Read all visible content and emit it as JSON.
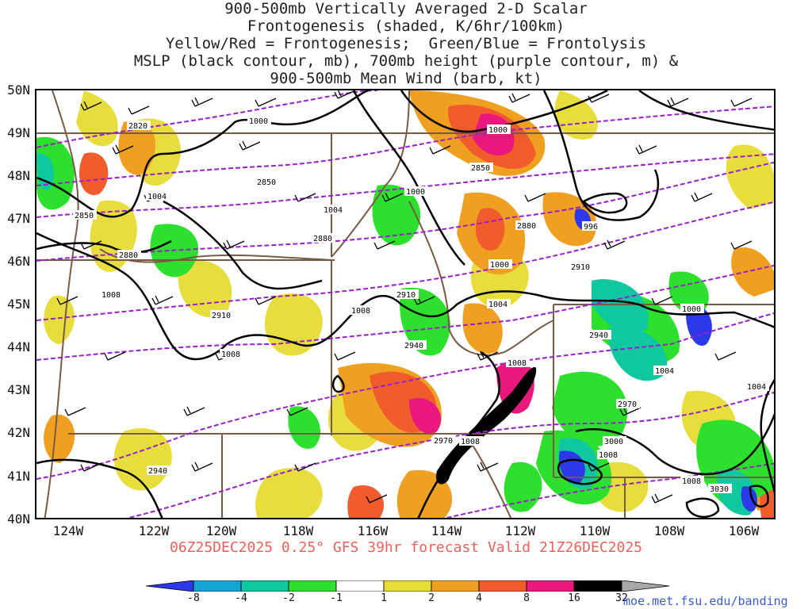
{
  "title_lines": [
    "900-500mb Vertically Averaged 2-D Scalar",
    "Frontogenesis (shaded, K/6hr/100km)",
    "Yellow/Red = Frontogenesis;  Green/Blue = Frontolysis",
    "MSLP (black contour, mb), 700mb height (purple contour, m) &",
    "900-500mb Mean Wind (barb, kt)"
  ],
  "lat_labels": [
    "50N",
    "49N",
    "48N",
    "47N",
    "46N",
    "45N",
    "44N",
    "43N",
    "42N",
    "41N",
    "40N"
  ],
  "lon_labels": [
    "124W",
    "122W",
    "120W",
    "118W",
    "116W",
    "114W",
    "112W",
    "110W",
    "108W",
    "106W"
  ],
  "caption": "06Z25DEC2025 0.25° GFS 39hr forecast Valid 21Z26DEC2025",
  "colorbar": {
    "ticks": [
      "-8",
      "-4",
      "-2",
      "-1",
      "1",
      "2",
      "4",
      "8",
      "16",
      "32"
    ],
    "colors": [
      "#2c39e8",
      "#16a6d6",
      "#10c8a0",
      "#1fd060",
      "#2ee02e",
      "#ffffff",
      "#e6dc34",
      "#f0a020",
      "#f05c2c",
      "#e8187c",
      "#000000",
      "#a8a8a8"
    ]
  },
  "credit": "moe.met.fsu.edu/banding",
  "mslp_labels": [
    "1000",
    "1000",
    "1000",
    "1000",
    "1004",
    "1004",
    "1004",
    "1008",
    "1008",
    "1008",
    "1008",
    "1008",
    "1008",
    "1000",
    "1004",
    "1004",
    "996",
    "1008",
    "1008"
  ],
  "height_labels": [
    "2820",
    "2850",
    "2850",
    "2850",
    "2880",
    "2880",
    "2880",
    "2910",
    "2910",
    "2910",
    "2940",
    "2940",
    "2940",
    "2970",
    "2970",
    "3000",
    "3030"
  ],
  "colors": {
    "mslp": "#000000",
    "height": "#9a1fcf",
    "borders": "#7a5a44",
    "frontogenesis_yellow": "#e6dc34",
    "frontogenesis_orange": "#f0a020",
    "frontogenesis_red": "#f05c2c",
    "frontogenesis_magenta": "#e8187c",
    "frontolysis_green": "#2ee02e",
    "frontolysis_teal": "#10c8a0",
    "frontolysis_blue": "#2c39e8"
  }
}
